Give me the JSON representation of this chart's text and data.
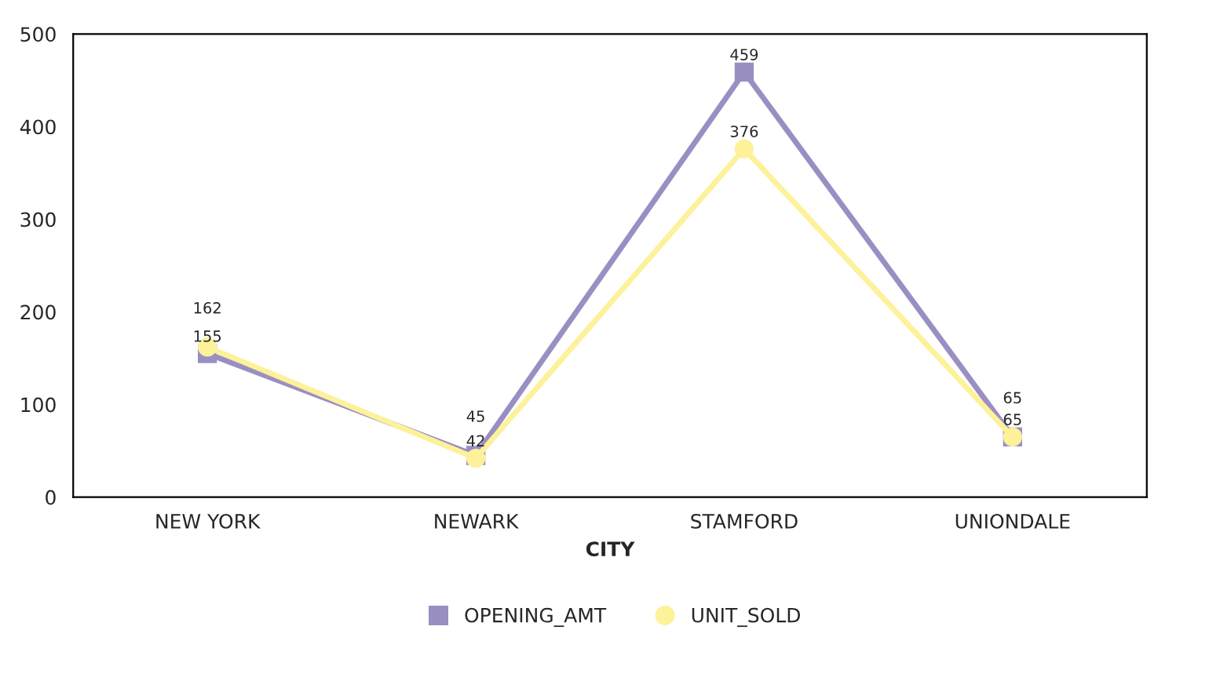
{
  "chart_data": {
    "type": "line",
    "xlabel": "CITY",
    "categories": [
      "NEW YORK",
      "NEWARK",
      "STAMFORD",
      "UNIONDALE"
    ],
    "series": [
      {
        "name": "OPENING_AMT",
        "color": "#9a8fc2",
        "marker": "square",
        "values": [
          155,
          45,
          459,
          65
        ]
      },
      {
        "name": "UNIT_SOLD",
        "color": "#fdf19a",
        "marker": "circle",
        "values": [
          162,
          42,
          376,
          65
        ]
      }
    ],
    "ylim": [
      0,
      500
    ],
    "yticks": [
      0,
      100,
      200,
      300,
      400,
      500
    ],
    "data_labels": true,
    "grid": false,
    "legend": "bottom"
  }
}
